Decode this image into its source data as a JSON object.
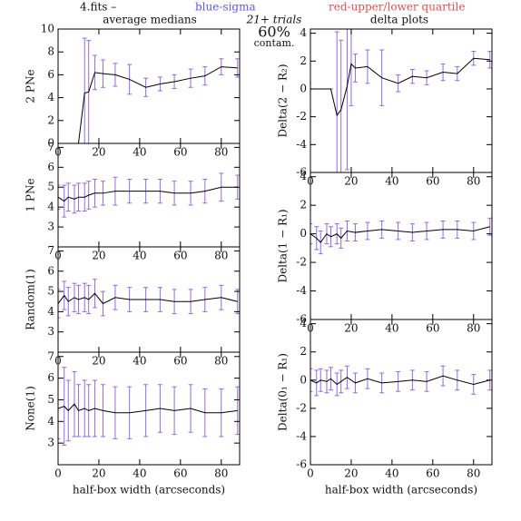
{
  "header": {
    "file": "4.fits  –",
    "sigma": "blue-sigma",
    "quartile": "red-upper/lower quartile",
    "left_title": "average medians",
    "trials": "21+ trials",
    "contam_pct": "60%",
    "contam": "contam.",
    "right_title": "delta plots"
  },
  "chart_data": [
    {
      "type": "line",
      "ylabel": "2 PNe",
      "color": "#000000",
      "error_color": "#8a6fe0",
      "x": [
        10,
        13,
        15,
        18,
        22,
        28,
        35,
        43,
        50,
        57,
        65,
        72,
        80,
        88
      ],
      "values": [
        0,
        4.4,
        4.5,
        6.2,
        6.1,
        6.0,
        5.6,
        4.9,
        5.2,
        5.4,
        5.7,
        5.9,
        6.7,
        6.6
      ],
      "errors": [
        0,
        4.8,
        4.5,
        1.5,
        1.2,
        1.0,
        1.3,
        0.8,
        0.6,
        0.6,
        0.8,
        0.8,
        0.7,
        0.8
      ],
      "xlim": [
        0,
        89
      ],
      "xticks": [
        0,
        20,
        40,
        60,
        80
      ],
      "ylim": [
        0,
        10
      ],
      "yticks": [
        0,
        2,
        4,
        6,
        8,
        10
      ]
    },
    {
      "type": "line",
      "ylabel": "1 PNe",
      "color": "#000000",
      "error_color": "#8a6fe0",
      "x": [
        0,
        3,
        5,
        8,
        10,
        13,
        15,
        18,
        22,
        28,
        35,
        43,
        50,
        57,
        65,
        72,
        80,
        88
      ],
      "values": [
        4.5,
        4.3,
        4.5,
        4.4,
        4.5,
        4.5,
        4.6,
        4.7,
        4.7,
        4.8,
        4.8,
        4.8,
        4.8,
        4.7,
        4.7,
        4.8,
        5.0,
        5.0
      ],
      "errors": [
        0.6,
        0.8,
        0.7,
        0.7,
        0.7,
        0.7,
        0.7,
        0.7,
        0.6,
        0.7,
        0.6,
        0.6,
        0.6,
        0.6,
        0.6,
        0.6,
        0.7,
        0.6
      ],
      "xlim": [
        0,
        89
      ],
      "xticks": [
        0,
        20,
        40,
        60,
        80
      ],
      "ylim": [
        2,
        7.2
      ],
      "yticks": [
        3,
        4,
        5,
        6,
        7
      ]
    },
    {
      "type": "line",
      "ylabel": "Random(1)",
      "color": "#000000",
      "error_color": "#8a6fe0",
      "x": [
        0,
        3,
        5,
        8,
        10,
        13,
        15,
        18,
        22,
        28,
        35,
        43,
        50,
        57,
        65,
        72,
        80,
        88
      ],
      "values": [
        4.4,
        4.8,
        4.5,
        4.7,
        4.6,
        4.7,
        4.6,
        4.9,
        4.4,
        4.7,
        4.6,
        4.6,
        4.6,
        4.5,
        4.5,
        4.6,
        4.7,
        4.5
      ],
      "errors": [
        0.7,
        0.7,
        0.7,
        0.7,
        0.7,
        0.7,
        0.7,
        0.7,
        0.6,
        0.6,
        0.6,
        0.6,
        0.6,
        0.6,
        0.6,
        0.6,
        0.6,
        0.6
      ],
      "xlim": [
        0,
        89
      ],
      "xticks": [
        0,
        20,
        40,
        60,
        80
      ],
      "ylim": [
        2,
        7.2
      ],
      "yticks": [
        3,
        4,
        5,
        6,
        7
      ]
    },
    {
      "type": "line",
      "ylabel": "None(1)",
      "xlabel": "half-box width (arcseconds)",
      "color": "#000000",
      "error_color": "#8a6fe0",
      "x": [
        0,
        3,
        5,
        8,
        10,
        13,
        15,
        18,
        22,
        28,
        35,
        43,
        50,
        57,
        65,
        72,
        80,
        88
      ],
      "values": [
        4.6,
        4.7,
        4.5,
        4.8,
        4.5,
        4.6,
        4.5,
        4.6,
        4.5,
        4.4,
        4.4,
        4.5,
        4.6,
        4.5,
        4.6,
        4.4,
        4.4,
        4.5
      ],
      "errors": [
        1.4,
        1.8,
        1.4,
        1.5,
        1.2,
        1.3,
        1.2,
        1.3,
        1.2,
        1.2,
        1.2,
        1.2,
        1.1,
        1.1,
        1.1,
        1.1,
        1.1,
        1.1
      ],
      "xlim": [
        0,
        89
      ],
      "xticks": [
        0,
        20,
        40,
        60,
        80
      ],
      "ylim": [
        2,
        7.2
      ],
      "yticks": [
        3,
        4,
        5,
        6,
        7
      ]
    },
    {
      "type": "line",
      "ylabel": "Delta(2 − R₂)",
      "color": "#000000",
      "error_color": "#8a6fe0",
      "x": [
        0,
        10,
        13,
        15,
        18,
        20,
        22,
        28,
        35,
        43,
        50,
        57,
        65,
        72,
        80,
        88
      ],
      "values": [
        0,
        0,
        -1.9,
        -1.5,
        0.2,
        1.8,
        1.5,
        1.6,
        0.8,
        0.4,
        0.9,
        0.8,
        1.2,
        1.1,
        2.2,
        2.1
      ],
      "errors": [
        0,
        0,
        6,
        5,
        6,
        3,
        1,
        1.2,
        2,
        0.6,
        0.5,
        0.5,
        0.6,
        0.5,
        0.5,
        0.6
      ],
      "xlim": [
        0,
        89
      ],
      "xticks": [
        0,
        20,
        40,
        60,
        80
      ],
      "ylim": [
        -6,
        4.3
      ],
      "yticks": [
        -6,
        -4,
        -2,
        0,
        2,
        4
      ]
    },
    {
      "type": "line",
      "ylabel": "Delta(1 − R₁)",
      "color": "#000000",
      "error_color": "#8a6fe0",
      "x": [
        0,
        3,
        5,
        8,
        10,
        13,
        15,
        18,
        22,
        28,
        35,
        43,
        50,
        57,
        65,
        72,
        80,
        88
      ],
      "values": [
        0,
        -0.3,
        -0.6,
        0,
        -0.2,
        0,
        -0.3,
        0.2,
        0.1,
        0.2,
        0.3,
        0.2,
        0.1,
        0.2,
        0.3,
        0.3,
        0.2,
        0.5
      ],
      "errors": [
        0.7,
        0.8,
        0.8,
        0.7,
        0.7,
        0.7,
        0.7,
        0.7,
        0.6,
        0.6,
        0.6,
        0.6,
        0.6,
        0.6,
        0.6,
        0.6,
        0.6,
        0.6
      ],
      "xlim": [
        0,
        89
      ],
      "xticks": [
        0,
        20,
        40,
        60,
        80
      ],
      "ylim": [
        -6,
        4.3
      ],
      "yticks": [
        -6,
        -4,
        -2,
        0,
        2,
        4
      ]
    },
    {
      "type": "line",
      "ylabel": "Delta(0₁ − R₁)",
      "xlabel": "half-box width (arcseconds)",
      "color": "#000000",
      "error_color": "#8a6fe0",
      "x": [
        0,
        3,
        5,
        8,
        10,
        13,
        15,
        18,
        22,
        28,
        35,
        43,
        50,
        57,
        65,
        72,
        80,
        88
      ],
      "values": [
        0,
        -0.2,
        0,
        -0.1,
        0.1,
        -0.3,
        -0.1,
        0.2,
        -0.2,
        0.1,
        -0.2,
        -0.1,
        0,
        -0.1,
        0.3,
        0,
        -0.3,
        0
      ],
      "errors": [
        0.8,
        0.9,
        0.8,
        0.8,
        0.8,
        0.8,
        0.8,
        0.8,
        0.7,
        0.7,
        0.7,
        0.7,
        0.7,
        0.7,
        0.7,
        0.7,
        0.7,
        0.7
      ],
      "xlim": [
        0,
        89
      ],
      "xticks": [
        0,
        20,
        40,
        60,
        80
      ],
      "ylim": [
        -6,
        4.3
      ],
      "yticks": [
        -6,
        -4,
        -2,
        0,
        2,
        4
      ]
    }
  ]
}
